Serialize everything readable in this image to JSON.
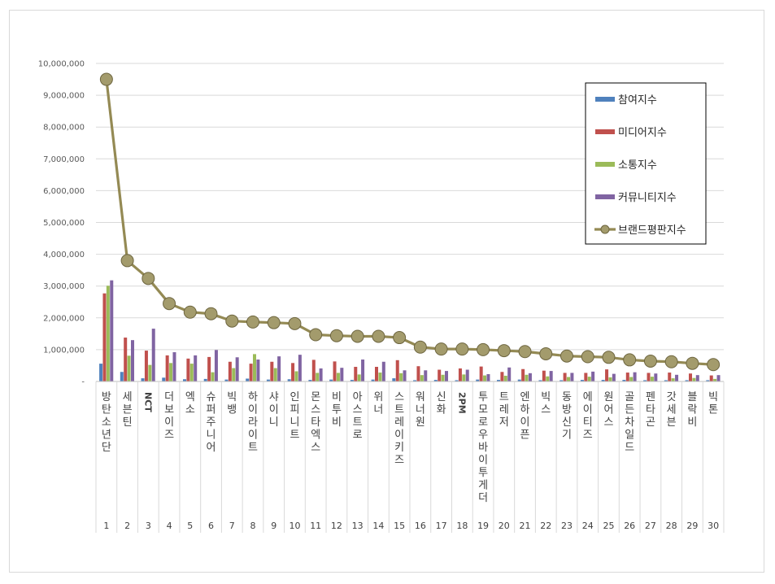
{
  "chart_data": {
    "type": "bar",
    "ylim": [
      0,
      10000000
    ],
    "yticks": [
      "-",
      "1,000,000",
      "2,000,000",
      "3,000,000",
      "4,000,000",
      "5,000,000",
      "6,000,000",
      "7,000,000",
      "8,000,000",
      "9,000,000",
      "10,000,000"
    ],
    "categories": [
      {
        "idx": "1",
        "name": "방탄소년단"
      },
      {
        "idx": "2",
        "name": "세븐틴"
      },
      {
        "idx": "3",
        "name": "NCT"
      },
      {
        "idx": "4",
        "name": "더보이즈"
      },
      {
        "idx": "5",
        "name": "엑소"
      },
      {
        "idx": "6",
        "name": "슈퍼주니어"
      },
      {
        "idx": "7",
        "name": "빅뱅"
      },
      {
        "idx": "8",
        "name": "하이라이트"
      },
      {
        "idx": "9",
        "name": "샤이니"
      },
      {
        "idx": "10",
        "name": "인피니트"
      },
      {
        "idx": "11",
        "name": "몬스타엑스"
      },
      {
        "idx": "12",
        "name": "비투비"
      },
      {
        "idx": "13",
        "name": "아스트로"
      },
      {
        "idx": "14",
        "name": "위너"
      },
      {
        "idx": "15",
        "name": "스트레이키즈"
      },
      {
        "idx": "16",
        "name": "워너원"
      },
      {
        "idx": "17",
        "name": "신화"
      },
      {
        "idx": "18",
        "name": "2PM"
      },
      {
        "idx": "19",
        "name": "투모로우바이투게더"
      },
      {
        "idx": "20",
        "name": "트레저"
      },
      {
        "idx": "21",
        "name": "엔하이픈"
      },
      {
        "idx": "22",
        "name": "빅스"
      },
      {
        "idx": "23",
        "name": "동방신기"
      },
      {
        "idx": "24",
        "name": "에이티즈"
      },
      {
        "idx": "25",
        "name": "원어스"
      },
      {
        "idx": "26",
        "name": "골든차일드"
      },
      {
        "idx": "27",
        "name": "펜타곤"
      },
      {
        "idx": "28",
        "name": "갓세븐"
      },
      {
        "idx": "29",
        "name": "블락비"
      },
      {
        "idx": "30",
        "name": "빅톤"
      }
    ],
    "series": [
      {
        "name": "참여지수",
        "kind": "bar",
        "color": "#4f81bd",
        "values": [
          560000,
          300000,
          100000,
          120000,
          70000,
          80000,
          60000,
          90000,
          60000,
          70000,
          50000,
          60000,
          50000,
          60000,
          100000,
          40000,
          50000,
          40000,
          60000,
          50000,
          60000,
          40000,
          40000,
          50000,
          50000,
          50000,
          40000,
          40000,
          40000,
          40000
        ]
      },
      {
        "name": "미디어지수",
        "kind": "bar",
        "color": "#c0504d",
        "values": [
          2770000,
          1380000,
          970000,
          820000,
          720000,
          770000,
          620000,
          560000,
          620000,
          580000,
          680000,
          630000,
          460000,
          460000,
          670000,
          480000,
          370000,
          410000,
          470000,
          300000,
          390000,
          340000,
          270000,
          270000,
          380000,
          280000,
          270000,
          280000,
          250000,
          190000
        ]
      },
      {
        "name": "소통지수",
        "kind": "bar",
        "color": "#9bbb59",
        "values": [
          3010000,
          810000,
          520000,
          580000,
          560000,
          290000,
          420000,
          860000,
          420000,
          320000,
          270000,
          270000,
          220000,
          280000,
          260000,
          200000,
          210000,
          220000,
          190000,
          180000,
          210000,
          160000,
          140000,
          150000,
          130000,
          140000,
          150000,
          100000,
          110000,
          80000
        ]
      },
      {
        "name": "커뮤니티지수",
        "kind": "bar",
        "color": "#8064a2",
        "values": [
          3180000,
          1300000,
          1660000,
          920000,
          820000,
          990000,
          760000,
          690000,
          790000,
          840000,
          410000,
          430000,
          690000,
          620000,
          350000,
          350000,
          330000,
          370000,
          230000,
          440000,
          260000,
          330000,
          270000,
          310000,
          240000,
          290000,
          250000,
          210000,
          200000,
          200000
        ]
      },
      {
        "name": "브랜드평판지수",
        "kind": "line",
        "color": "#948a54",
        "values": [
          9500000,
          3800000,
          3240000,
          2450000,
          2180000,
          2130000,
          1900000,
          1870000,
          1850000,
          1820000,
          1470000,
          1440000,
          1420000,
          1420000,
          1380000,
          1080000,
          1020000,
          1020000,
          1000000,
          970000,
          940000,
          870000,
          800000,
          780000,
          760000,
          680000,
          640000,
          620000,
          570000,
          530000
        ]
      }
    ],
    "legend": "right"
  }
}
